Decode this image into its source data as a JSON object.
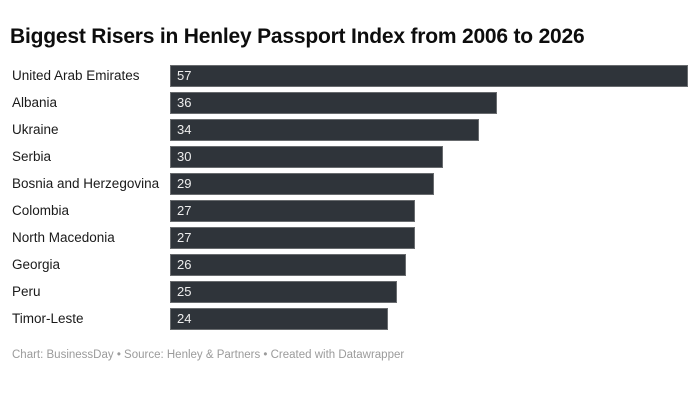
{
  "header": {
    "title": "Biggest Risers in Henley Passport Index from 2006 to 2026"
  },
  "footer": {
    "text": "Chart: BusinessDay • Source: Henley & Partners • Created with Datawrapper",
    "chart_credit": "BusinessDay",
    "source": "Henley & Partners",
    "tool": "Datawrapper"
  },
  "colors": {
    "background": "#ffffff",
    "bar": "#2f343a",
    "bar_outline": "#b0b0b0",
    "title_text": "#0d0d0d",
    "category_text": "#1a1a1a",
    "value_text": "#ededed",
    "footer_text": "#9b9b9b"
  },
  "chart_data": {
    "type": "bar",
    "orientation": "horizontal",
    "title": "Biggest Risers in Henley Passport Index from 2006 to 2026",
    "categories": [
      "United Arab Emirates",
      "Albania",
      "Ukraine",
      "Serbia",
      "Bosnia and Herzegovina",
      "Colombia",
      "North Macedonia",
      "Georgia",
      "Peru",
      "Timor-Leste"
    ],
    "values": [
      57,
      36,
      34,
      30,
      29,
      27,
      27,
      26,
      25,
      24
    ],
    "xlabel": "",
    "ylabel": "",
    "xlim": [
      0,
      57
    ],
    "grid": false,
    "legend": false,
    "value_label_position": "inside-start"
  }
}
